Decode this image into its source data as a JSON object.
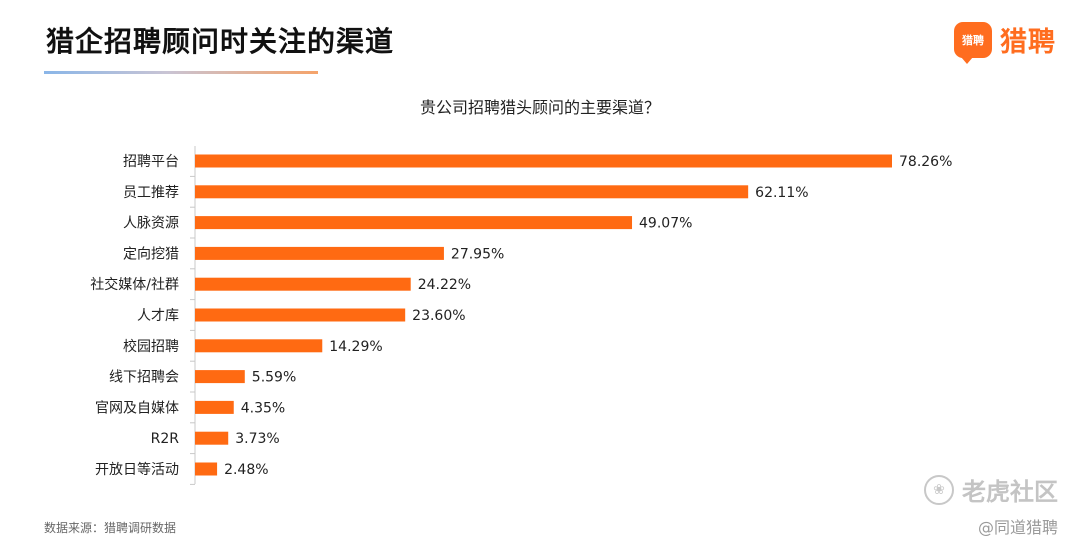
{
  "header": {
    "title": "猎企招聘顾问时关注的渠道",
    "brand": {
      "logo_text": "猎聘",
      "name": "猎聘",
      "color": "#ff6d1f"
    }
  },
  "chart_data": {
    "type": "bar",
    "orientation": "horizontal",
    "title": "贵公司招聘猎头顾问的主要渠道？",
    "categories": [
      "招聘平台",
      "员工推荐",
      "人脉资源",
      "定向挖猎",
      "社交媒体/社群",
      "人才库",
      "校园招聘",
      "线下招聘会",
      "官网及自媒体",
      "R2R",
      "开放日等活动"
    ],
    "values": [
      78.26,
      62.11,
      49.07,
      27.95,
      24.22,
      23.6,
      14.29,
      5.59,
      4.35,
      3.73,
      2.48
    ],
    "value_labels": [
      "78.26%",
      "62.11%",
      "49.07%",
      "27.95%",
      "24.22%",
      "23.60%",
      "14.29%",
      "5.59%",
      "4.35%",
      "3.73%",
      "2.48%"
    ],
    "bar_color": "#ff6a12",
    "axis_color": "#c8c8c8",
    "xlim": [
      0,
      78.26
    ],
    "grid": false,
    "legend": "none"
  },
  "footer": {
    "source": "数据来源：猎聘调研数据"
  },
  "watermark": {
    "main": "老虎社区",
    "sub": "@同道猎聘"
  }
}
